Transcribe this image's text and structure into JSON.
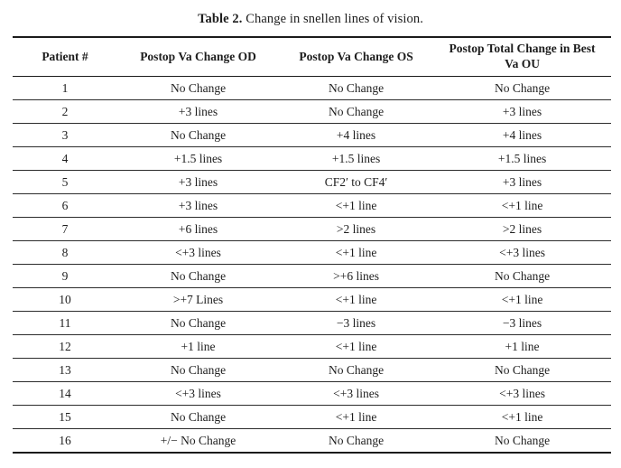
{
  "caption": {
    "label": "Table 2.",
    "text": "Change in snellen lines of vision."
  },
  "table": {
    "headers": [
      "Patient #",
      "Postop Va Change OD",
      "Postop Va Change OS",
      "Postop Total Change in Best Va OU"
    ],
    "rows": [
      {
        "patient": "1",
        "od": "No Change",
        "os": "No Change",
        "ou": "No Change"
      },
      {
        "patient": "2",
        "od": "+3 lines",
        "os": "No Change",
        "ou": "+3 lines"
      },
      {
        "patient": "3",
        "od": "No Change",
        "os": "+4 lines",
        "ou": "+4 lines"
      },
      {
        "patient": "4",
        "od": "+1.5 lines",
        "os": "+1.5 lines",
        "ou": "+1.5 lines"
      },
      {
        "patient": "5",
        "od": "+3 lines",
        "os": "CF2′ to CF4′",
        "ou": "+3 lines"
      },
      {
        "patient": "6",
        "od": "+3 lines",
        "os": "<+1 line",
        "ou": "<+1 line"
      },
      {
        "patient": "7",
        "od": "+6 lines",
        "os": ">2 lines",
        "ou": ">2 lines"
      },
      {
        "patient": "8",
        "od": "<+3 lines",
        "os": "<+1 line",
        "ou": "<+3 lines"
      },
      {
        "patient": "9",
        "od": "No Change",
        "os": ">+6 lines",
        "ou": "No Change"
      },
      {
        "patient": "10",
        "od": ">+7 Lines",
        "os": "<+1 line",
        "ou": "<+1 line"
      },
      {
        "patient": "11",
        "od": "No Change",
        "os": "−3 lines",
        "ou": "−3 lines"
      },
      {
        "patient": "12",
        "od": "+1 line",
        "os": "<+1 line",
        "ou": "+1 line"
      },
      {
        "patient": "13",
        "od": "No Change",
        "os": "No Change",
        "ou": "No Change"
      },
      {
        "patient": "14",
        "od": "<+3 lines",
        "os": "<+3 lines",
        "ou": "<+3 lines"
      },
      {
        "patient": "15",
        "od": "No Change",
        "os": "<+1 line",
        "ou": "<+1 line"
      },
      {
        "patient": "16",
        "od": "+/− No Change",
        "os": "No Change",
        "ou": "No Change"
      }
    ]
  }
}
